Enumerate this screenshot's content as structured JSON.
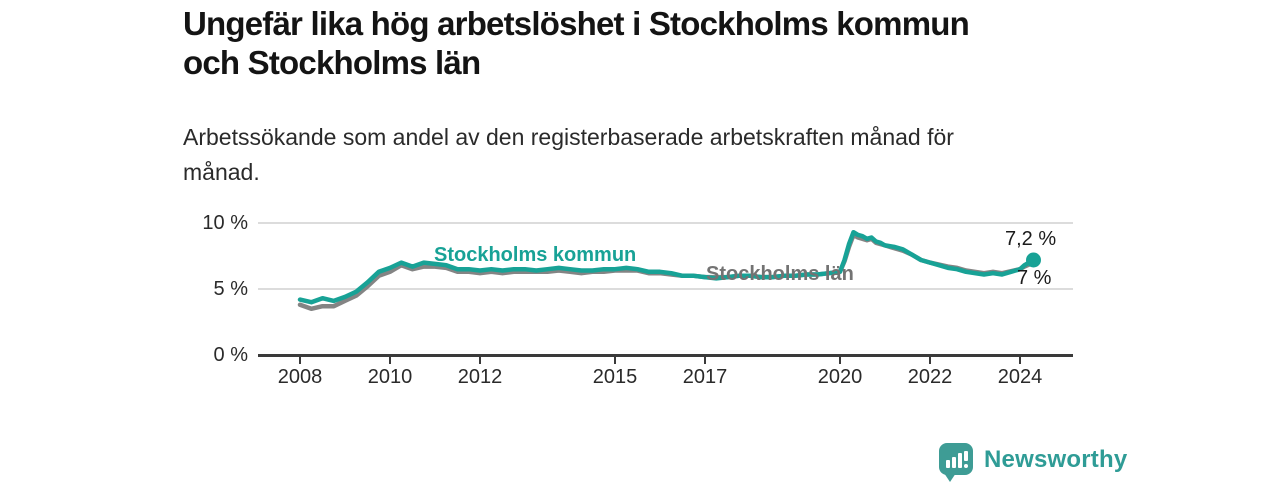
{
  "header": {
    "title": "Ungefär lika hög arbetslöshet i Stockholms kommun och Stockholms län",
    "title_lines": [
      "Ungefär lika hög arbetslöshet i Stockholms kommun",
      "och Stockholms län"
    ],
    "subtitle": "Arbetssökande som andel av den registerbaserade arbetskraften månad för månad.",
    "subtitle_lines": [
      "Arbetssökande som andel av den registerbaserade arbetskraften månad för",
      "månad."
    ]
  },
  "colors": {
    "accent_teal": "#18a296",
    "line_gray": "#848484",
    "label_gray": "#737373",
    "logo_teal": "#3e9c95",
    "brand_text_teal": "#2f9c96",
    "grid": "#dcdcdc",
    "axis": "#3a3a3a",
    "text_dark": "#1b1b1b"
  },
  "chart_data": {
    "type": "line",
    "title": "Ungefär lika hög arbetslöshet i Stockholms kommun och Stockholms län",
    "subtitle": "Arbetssökande som andel av den registerbaserade arbetskraften månad för månad.",
    "unit": "%",
    "grid": true,
    "legend_position": "inline-labels",
    "x_axis": {
      "range": [
        2007.1,
        2025.2
      ],
      "ticks": [
        2008,
        2010,
        2012,
        2015,
        2017,
        2020,
        2022,
        2024
      ]
    },
    "y_axis": {
      "range": [
        0,
        10.5
      ],
      "ticks": [
        {
          "value": 10,
          "label": "10 %"
        },
        {
          "value": 5,
          "label": "5 %"
        },
        {
          "value": 0,
          "label": "0 %"
        }
      ]
    },
    "x": [
      2008,
      2008.25,
      2008.5,
      2008.75,
      2009,
      2009.25,
      2009.5,
      2009.75,
      2010,
      2010.25,
      2010.5,
      2010.75,
      2011,
      2011.25,
      2011.5,
      2011.75,
      2012,
      2012.25,
      2012.5,
      2012.75,
      2013,
      2013.25,
      2013.5,
      2013.75,
      2014,
      2014.25,
      2014.5,
      2014.75,
      2015,
      2015.25,
      2015.5,
      2015.75,
      2016,
      2016.25,
      2016.5,
      2016.75,
      2017,
      2017.25,
      2017.5,
      2017.75,
      2018,
      2018.25,
      2018.5,
      2018.75,
      2019,
      2019.25,
      2019.5,
      2019.75,
      2020,
      2020.1,
      2020.2,
      2020.3,
      2020.4,
      2020.5,
      2020.6,
      2020.7,
      2020.8,
      2020.9,
      2021,
      2021.2,
      2021.4,
      2021.6,
      2021.8,
      2022,
      2022.2,
      2022.4,
      2022.6,
      2022.8,
      2023,
      2023.2,
      2023.4,
      2023.6,
      2023.8,
      2024,
      2024.1,
      2024.2,
      2024.3
    ],
    "series": [
      {
        "name": "Stockholms kommun",
        "slug": "stockholms-kommun",
        "color": "#18a296",
        "label_color": "#18a296",
        "end_value_label": "7,2 %",
        "values": [
          4.2,
          4.0,
          4.3,
          4.1,
          4.4,
          4.8,
          5.5,
          6.3,
          6.6,
          7.0,
          6.7,
          7.0,
          6.9,
          6.8,
          6.5,
          6.5,
          6.4,
          6.5,
          6.4,
          6.5,
          6.5,
          6.4,
          6.5,
          6.6,
          6.5,
          6.4,
          6.4,
          6.5,
          6.5,
          6.6,
          6.5,
          6.3,
          6.3,
          6.2,
          6.0,
          6.0,
          5.9,
          5.8,
          5.9,
          6.0,
          6.0,
          5.9,
          5.9,
          6.0,
          6.0,
          6.1,
          6.1,
          6.2,
          6.3,
          7.2,
          8.4,
          9.3,
          9.1,
          9.0,
          8.8,
          8.9,
          8.6,
          8.5,
          8.3,
          8.2,
          8.0,
          7.6,
          7.2,
          7.0,
          6.8,
          6.6,
          6.5,
          6.3,
          6.2,
          6.1,
          6.2,
          6.1,
          6.3,
          6.5,
          6.8,
          7.0,
          7.2
        ]
      },
      {
        "name": "Stockholms län",
        "slug": "stockholms-lan",
        "color": "#848484",
        "label_color": "#737373",
        "end_value_label": "7 %",
        "values": [
          3.8,
          3.5,
          3.7,
          3.7,
          4.1,
          4.5,
          5.2,
          6.0,
          6.3,
          6.8,
          6.5,
          6.7,
          6.7,
          6.6,
          6.3,
          6.3,
          6.2,
          6.3,
          6.2,
          6.3,
          6.3,
          6.3,
          6.3,
          6.4,
          6.3,
          6.2,
          6.3,
          6.3,
          6.4,
          6.4,
          6.4,
          6.2,
          6.2,
          6.1,
          6.0,
          6.0,
          5.9,
          5.9,
          5.9,
          6.0,
          6.0,
          5.9,
          5.9,
          6.0,
          6.0,
          6.1,
          6.1,
          6.2,
          6.3,
          7.1,
          8.2,
          9.1,
          8.9,
          8.8,
          8.7,
          8.8,
          8.5,
          8.4,
          8.3,
          8.1,
          7.9,
          7.6,
          7.2,
          7.0,
          6.85,
          6.7,
          6.6,
          6.4,
          6.3,
          6.2,
          6.3,
          6.2,
          6.35,
          6.5,
          6.7,
          6.85,
          7.0
        ]
      }
    ],
    "annotations": [
      {
        "text": "7,2 %",
        "series": "Stockholms kommun"
      },
      {
        "text": "7 %",
        "series": "Stockholms län"
      }
    ],
    "end_dot": {
      "series": "Stockholms kommun",
      "x": 2024.3,
      "value": 7.2
    }
  },
  "footer": {
    "brand": "Newsworthy"
  }
}
